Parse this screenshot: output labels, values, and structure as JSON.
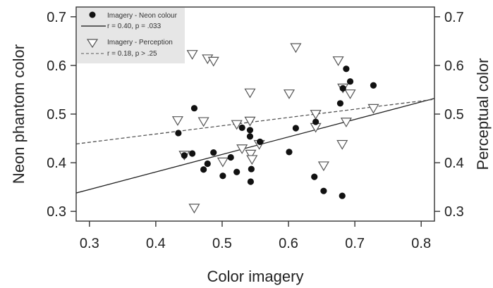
{
  "chart_data": {
    "type": "scatter",
    "xlabel": "Color imagery",
    "ylabel": "Neon phantom color",
    "y2label": "Perceptual color",
    "xlim": [
      0.28,
      0.82
    ],
    "ylim": [
      0.28,
      0.72
    ],
    "xticks": [
      "0.3",
      "0.4",
      "0.5",
      "0.6",
      "0.7",
      "0.8"
    ],
    "yticks": [
      "0.3",
      "0.4",
      "0.5",
      "0.6",
      "0.7"
    ],
    "y2ticks": [
      "0.3",
      "0.4",
      "0.5",
      "0.6",
      "0.7"
    ],
    "grid": false,
    "legend_position": "top-left",
    "series": [
      {
        "name": "Imagery - Neon colour",
        "fit_label": "r = 0.40, p = .033",
        "marker": "filled-circle",
        "line_style": "solid",
        "fit": {
          "slope": 0.36,
          "intercept": 0.237
        },
        "points": [
          {
            "x": 0.434,
            "y": 0.461
          },
          {
            "x": 0.443,
            "y": 0.415
          },
          {
            "x": 0.455,
            "y": 0.419
          },
          {
            "x": 0.458,
            "y": 0.512
          },
          {
            "x": 0.472,
            "y": 0.386
          },
          {
            "x": 0.478,
            "y": 0.398
          },
          {
            "x": 0.487,
            "y": 0.421
          },
          {
            "x": 0.501,
            "y": 0.373
          },
          {
            "x": 0.513,
            "y": 0.411
          },
          {
            "x": 0.522,
            "y": 0.381
          },
          {
            "x": 0.53,
            "y": 0.472
          },
          {
            "x": 0.542,
            "y": 0.467
          },
          {
            "x": 0.542,
            "y": 0.454
          },
          {
            "x": 0.543,
            "y": 0.361
          },
          {
            "x": 0.544,
            "y": 0.387
          },
          {
            "x": 0.557,
            "y": 0.443
          },
          {
            "x": 0.601,
            "y": 0.422
          },
          {
            "x": 0.611,
            "y": 0.471
          },
          {
            "x": 0.639,
            "y": 0.371
          },
          {
            "x": 0.641,
            "y": 0.484
          },
          {
            "x": 0.653,
            "y": 0.342
          },
          {
            "x": 0.678,
            "y": 0.522
          },
          {
            "x": 0.681,
            "y": 0.332
          },
          {
            "x": 0.682,
            "y": 0.553
          },
          {
            "x": 0.687,
            "y": 0.593
          },
          {
            "x": 0.693,
            "y": 0.567
          },
          {
            "x": 0.728,
            "y": 0.559
          }
        ]
      },
      {
        "name": "Imagery - Perception",
        "fit_label": "r = 0.18, p > .25",
        "marker": "open-triangle-down",
        "line_style": "dashed",
        "fit": {
          "slope": 0.17,
          "intercept": 0.391
        },
        "points": [
          {
            "x": 0.433,
            "y": 0.486
          },
          {
            "x": 0.443,
            "y": 0.415
          },
          {
            "x": 0.455,
            "y": 0.622
          },
          {
            "x": 0.458,
            "y": 0.306
          },
          {
            "x": 0.472,
            "y": 0.484
          },
          {
            "x": 0.478,
            "y": 0.613
          },
          {
            "x": 0.487,
            "y": 0.608
          },
          {
            "x": 0.501,
            "y": 0.401
          },
          {
            "x": 0.522,
            "y": 0.478
          },
          {
            "x": 0.53,
            "y": 0.428
          },
          {
            "x": 0.542,
            "y": 0.543
          },
          {
            "x": 0.542,
            "y": 0.485
          },
          {
            "x": 0.543,
            "y": 0.417
          },
          {
            "x": 0.545,
            "y": 0.406
          },
          {
            "x": 0.556,
            "y": 0.437
          },
          {
            "x": 0.601,
            "y": 0.541
          },
          {
            "x": 0.611,
            "y": 0.636
          },
          {
            "x": 0.641,
            "y": 0.499
          },
          {
            "x": 0.641,
            "y": 0.472
          },
          {
            "x": 0.653,
            "y": 0.393
          },
          {
            "x": 0.675,
            "y": 0.609
          },
          {
            "x": 0.681,
            "y": 0.437
          },
          {
            "x": 0.682,
            "y": 0.553
          },
          {
            "x": 0.687,
            "y": 0.483
          },
          {
            "x": 0.693,
            "y": 0.541
          },
          {
            "x": 0.728,
            "y": 0.511
          }
        ]
      }
    ]
  }
}
